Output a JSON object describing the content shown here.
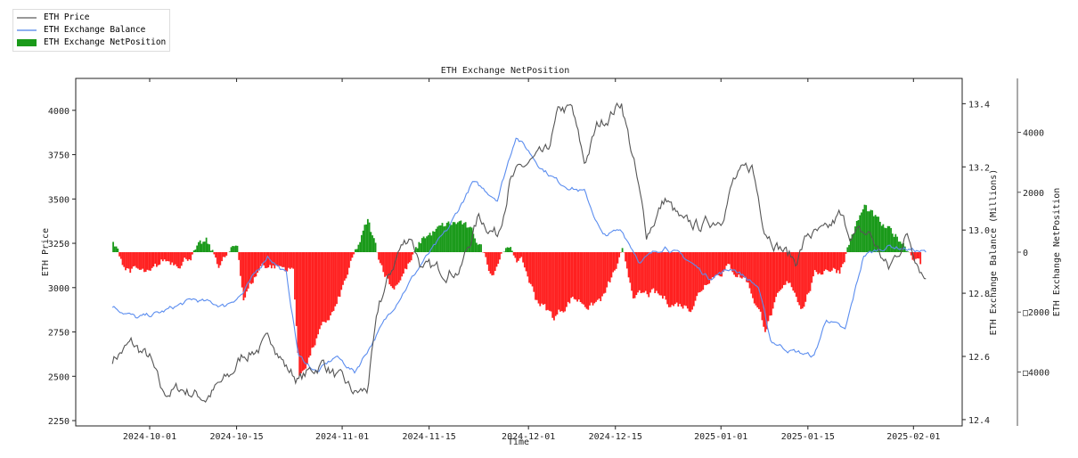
{
  "chart_data": {
    "type": "line",
    "title": "ETH Exchange NetPosition",
    "xlabel": "Time",
    "ylabel": "ETH Price",
    "y2label": "ETH Exchange Balance (Millions)",
    "y3label": "ETH Exchange NetPosition",
    "legend_position": "top-left",
    "legend": [
      "ETH Price",
      "ETH Exchange Balance",
      "ETH Exchange NetPosition"
    ],
    "x_ticks": [
      "2024-10-01",
      "2024-10-15",
      "2024-11-01",
      "2024-11-15",
      "2024-12-01",
      "2024-12-15",
      "2025-01-01",
      "2025-01-15",
      "2025-02-01"
    ],
    "y_ticks": [
      "2250",
      "2500",
      "2750",
      "3000",
      "3250",
      "3500",
      "3750",
      "4000"
    ],
    "y2_ticks": [
      "12.4",
      "12.6",
      "12.8",
      "13.0",
      "13.2",
      "13.4"
    ],
    "y3_ticks": [
      {
        "v": 4000,
        "label": "4000"
      },
      {
        "v": 2000,
        "label": "2000"
      },
      {
        "v": 0,
        "label": "0"
      },
      {
        "v": -2000,
        "label": "□2000"
      },
      {
        "v": -4000,
        "label": "□4000"
      }
    ],
    "ylim": [
      2220,
      4180
    ],
    "y2lim": [
      12.38,
      13.48
    ],
    "y3lim": [
      -5800,
      5800
    ],
    "colors": {
      "price": "#555555",
      "balance": "#5b8def",
      "positive": "#1a9a1a",
      "negative": "#ff2020"
    },
    "series": [
      {
        "name": "ETH Price",
        "points": [
          [
            "2024-09-25",
            2600
          ],
          [
            "2024-09-28",
            2680
          ],
          [
            "2024-10-01",
            2600
          ],
          [
            "2024-10-03",
            2400
          ],
          [
            "2024-10-06",
            2430
          ],
          [
            "2024-10-10",
            2380
          ],
          [
            "2024-10-14",
            2500
          ],
          [
            "2024-10-16",
            2620
          ],
          [
            "2024-10-21",
            2700
          ],
          [
            "2024-10-23",
            2550
          ],
          [
            "2024-10-25",
            2480
          ],
          [
            "2024-10-29",
            2580
          ],
          [
            "2024-10-31",
            2500
          ],
          [
            "2024-11-03",
            2400
          ],
          [
            "2024-11-05",
            2420
          ],
          [
            "2024-11-07",
            2900
          ],
          [
            "2024-11-10",
            3200
          ],
          [
            "2024-11-12",
            3300
          ],
          [
            "2024-11-14",
            3100
          ],
          [
            "2024-11-17",
            3100
          ],
          [
            "2024-11-20",
            3100
          ],
          [
            "2024-11-23",
            3400
          ],
          [
            "2024-11-26",
            3300
          ],
          [
            "2024-11-28",
            3600
          ],
          [
            "2024-12-01",
            3700
          ],
          [
            "2024-12-04",
            3750
          ],
          [
            "2024-12-06",
            4000
          ],
          [
            "2024-12-08",
            4000
          ],
          [
            "2024-12-10",
            3700
          ],
          [
            "2024-12-12",
            3900
          ],
          [
            "2024-12-16",
            4050
          ],
          [
            "2024-12-18",
            3700
          ],
          [
            "2024-12-20",
            3300
          ],
          [
            "2024-12-23",
            3500
          ],
          [
            "2024-12-26",
            3350
          ],
          [
            "2024-12-29",
            3350
          ],
          [
            "2025-01-01",
            3400
          ],
          [
            "2025-01-03",
            3600
          ],
          [
            "2025-01-06",
            3680
          ],
          [
            "2025-01-08",
            3350
          ],
          [
            "2025-01-10",
            3250
          ],
          [
            "2025-01-13",
            3150
          ],
          [
            "2025-01-15",
            3300
          ],
          [
            "2025-01-18",
            3300
          ],
          [
            "2025-01-20",
            3400
          ],
          [
            "2025-01-22",
            3300
          ],
          [
            "2025-01-25",
            3300
          ],
          [
            "2025-01-28",
            3100
          ],
          [
            "2025-01-31",
            3300
          ],
          [
            "2025-02-03",
            3050
          ]
        ]
      },
      {
        "name": "ETH Exchange Balance",
        "points": [
          [
            "2024-09-25",
            12.76
          ],
          [
            "2024-09-29",
            12.72
          ],
          [
            "2024-10-03",
            12.74
          ],
          [
            "2024-10-08",
            12.78
          ],
          [
            "2024-10-13",
            12.76
          ],
          [
            "2024-10-16",
            12.8
          ],
          [
            "2024-10-20",
            12.92
          ],
          [
            "2024-10-23",
            12.86
          ],
          [
            "2024-10-25",
            12.6
          ],
          [
            "2024-10-28",
            12.55
          ],
          [
            "2024-10-31",
            12.6
          ],
          [
            "2024-11-03",
            12.55
          ],
          [
            "2024-11-06",
            12.65
          ],
          [
            "2024-11-10",
            12.78
          ],
          [
            "2024-11-14",
            12.9
          ],
          [
            "2024-11-18",
            13.0
          ],
          [
            "2024-11-22",
            13.15
          ],
          [
            "2024-11-26",
            13.1
          ],
          [
            "2024-11-29",
            13.3
          ],
          [
            "2024-12-03",
            13.2
          ],
          [
            "2024-12-06",
            13.15
          ],
          [
            "2024-12-10",
            13.12
          ],
          [
            "2024-12-13",
            12.98
          ],
          [
            "2024-12-16",
            13.0
          ],
          [
            "2024-12-19",
            12.9
          ],
          [
            "2024-12-23",
            12.95
          ],
          [
            "2024-12-27",
            12.9
          ],
          [
            "2024-12-30",
            12.85
          ],
          [
            "2025-01-03",
            12.88
          ],
          [
            "2025-01-07",
            12.82
          ],
          [
            "2025-01-09",
            12.65
          ],
          [
            "2025-01-12",
            12.62
          ],
          [
            "2025-01-16",
            12.6
          ],
          [
            "2025-01-18",
            12.72
          ],
          [
            "2025-01-21",
            12.68
          ],
          [
            "2025-01-24",
            12.92
          ],
          [
            "2025-01-28",
            12.95
          ],
          [
            "2025-02-03",
            12.93
          ]
        ]
      },
      {
        "name": "ETH Exchange NetPosition",
        "points": [
          [
            "2024-09-25",
            300
          ],
          [
            "2024-09-27",
            -500
          ],
          [
            "2024-10-01",
            -800
          ],
          [
            "2024-10-03",
            -300
          ],
          [
            "2024-10-06",
            -300
          ],
          [
            "2024-10-10",
            300
          ],
          [
            "2024-10-12",
            -400
          ],
          [
            "2024-10-15",
            200
          ],
          [
            "2024-10-16",
            -1500
          ],
          [
            "2024-10-19",
            -400
          ],
          [
            "2024-10-22",
            -500
          ],
          [
            "2024-10-24",
            -600
          ],
          [
            "2024-10-25",
            -4200
          ],
          [
            "2024-10-28",
            -2800
          ],
          [
            "2024-10-31",
            -1800
          ],
          [
            "2024-11-02",
            -600
          ],
          [
            "2024-11-05",
            1000
          ],
          [
            "2024-11-07",
            -300
          ],
          [
            "2024-11-09",
            -1200
          ],
          [
            "2024-11-12",
            -300
          ],
          [
            "2024-11-14",
            500
          ],
          [
            "2024-11-18",
            900
          ],
          [
            "2024-11-20",
            1000
          ],
          [
            "2024-11-23",
            300
          ],
          [
            "2024-11-25",
            -700
          ],
          [
            "2024-11-27",
            200
          ],
          [
            "2024-11-30",
            -400
          ],
          [
            "2024-12-02",
            -1500
          ],
          [
            "2024-12-05",
            -2200
          ],
          [
            "2024-12-08",
            -1500
          ],
          [
            "2024-12-11",
            -1800
          ],
          [
            "2024-12-13",
            -1500
          ],
          [
            "2024-12-16",
            -100
          ],
          [
            "2024-12-18",
            -1500
          ],
          [
            "2024-12-21",
            -1400
          ],
          [
            "2024-12-24",
            -1700
          ],
          [
            "2024-12-27",
            -1800
          ],
          [
            "2024-12-30",
            -800
          ],
          [
            "2025-01-02",
            -500
          ],
          [
            "2025-01-05",
            -900
          ],
          [
            "2025-01-08",
            -2500
          ],
          [
            "2025-01-10",
            -1600
          ],
          [
            "2025-01-12",
            -1000
          ],
          [
            "2025-01-14",
            -1800
          ],
          [
            "2025-01-16",
            -800
          ],
          [
            "2025-01-18",
            -500
          ],
          [
            "2025-01-20",
            -600
          ],
          [
            "2025-01-22",
            600
          ],
          [
            "2025-01-24",
            1500
          ],
          [
            "2025-01-27",
            800
          ],
          [
            "2025-01-30",
            400
          ],
          [
            "2025-02-02",
            -400
          ]
        ]
      }
    ]
  }
}
